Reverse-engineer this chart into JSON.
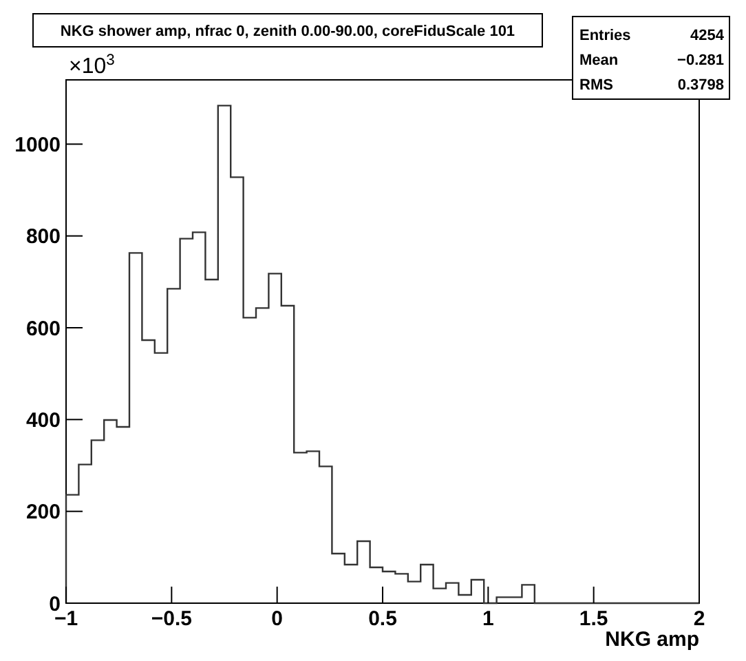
{
  "chart_data": {
    "type": "histogram",
    "title": "NKG shower amp, nfrac 0, zenith 0.00-90.00, coreFiduScale 101",
    "xlabel": "NKG amp",
    "bins": [
      -1,
      -0.94,
      -0.88,
      -0.82,
      -0.76,
      -0.7,
      -0.64,
      -0.58,
      -0.52,
      -0.46,
      -0.4,
      -0.34,
      -0.28,
      -0.22,
      -0.16,
      -0.1,
      -0.04,
      0.02,
      0.08,
      0.14,
      0.2,
      0.26,
      0.32,
      0.38,
      0.44,
      0.5,
      0.56,
      0.62,
      0.68,
      0.74,
      0.8,
      0.86,
      0.92,
      0.98,
      1.04,
      1.1,
      1.16,
      1.22,
      1.28,
      1.34,
      1.4,
      1.46,
      1.52,
      1.58,
      1.64,
      1.7,
      1.76,
      1.82,
      1.88,
      1.94,
      2
    ],
    "values": [
      236,
      302,
      355,
      399,
      384,
      763,
      573,
      545,
      685,
      794,
      808,
      705,
      1084,
      928,
      622,
      643,
      718,
      648,
      328,
      331,
      298,
      108,
      84,
      135,
      78,
      69,
      64,
      47,
      84,
      32,
      44,
      18,
      51,
      0,
      13,
      13,
      40,
      0,
      0,
      0,
      0,
      0,
      0,
      0,
      0,
      0,
      0,
      0,
      0,
      0
    ],
    "color": "#333333",
    "xlim": [
      -1,
      2
    ],
    "xticks": [
      {
        "value": -1,
        "label": "−1"
      },
      {
        "value": -0.5,
        "label": "−0.5"
      },
      0,
      0.5,
      1,
      1.5,
      2
    ],
    "ylim": [
      0,
      1140
    ],
    "yticks": [
      0,
      200,
      400,
      600,
      800,
      1000
    ],
    "annotations": [
      "×10$^{3}$",
      "Entries",
      "4254",
      "Mean",
      "−0.281",
      "RMS",
      "0.3798"
    ]
  }
}
